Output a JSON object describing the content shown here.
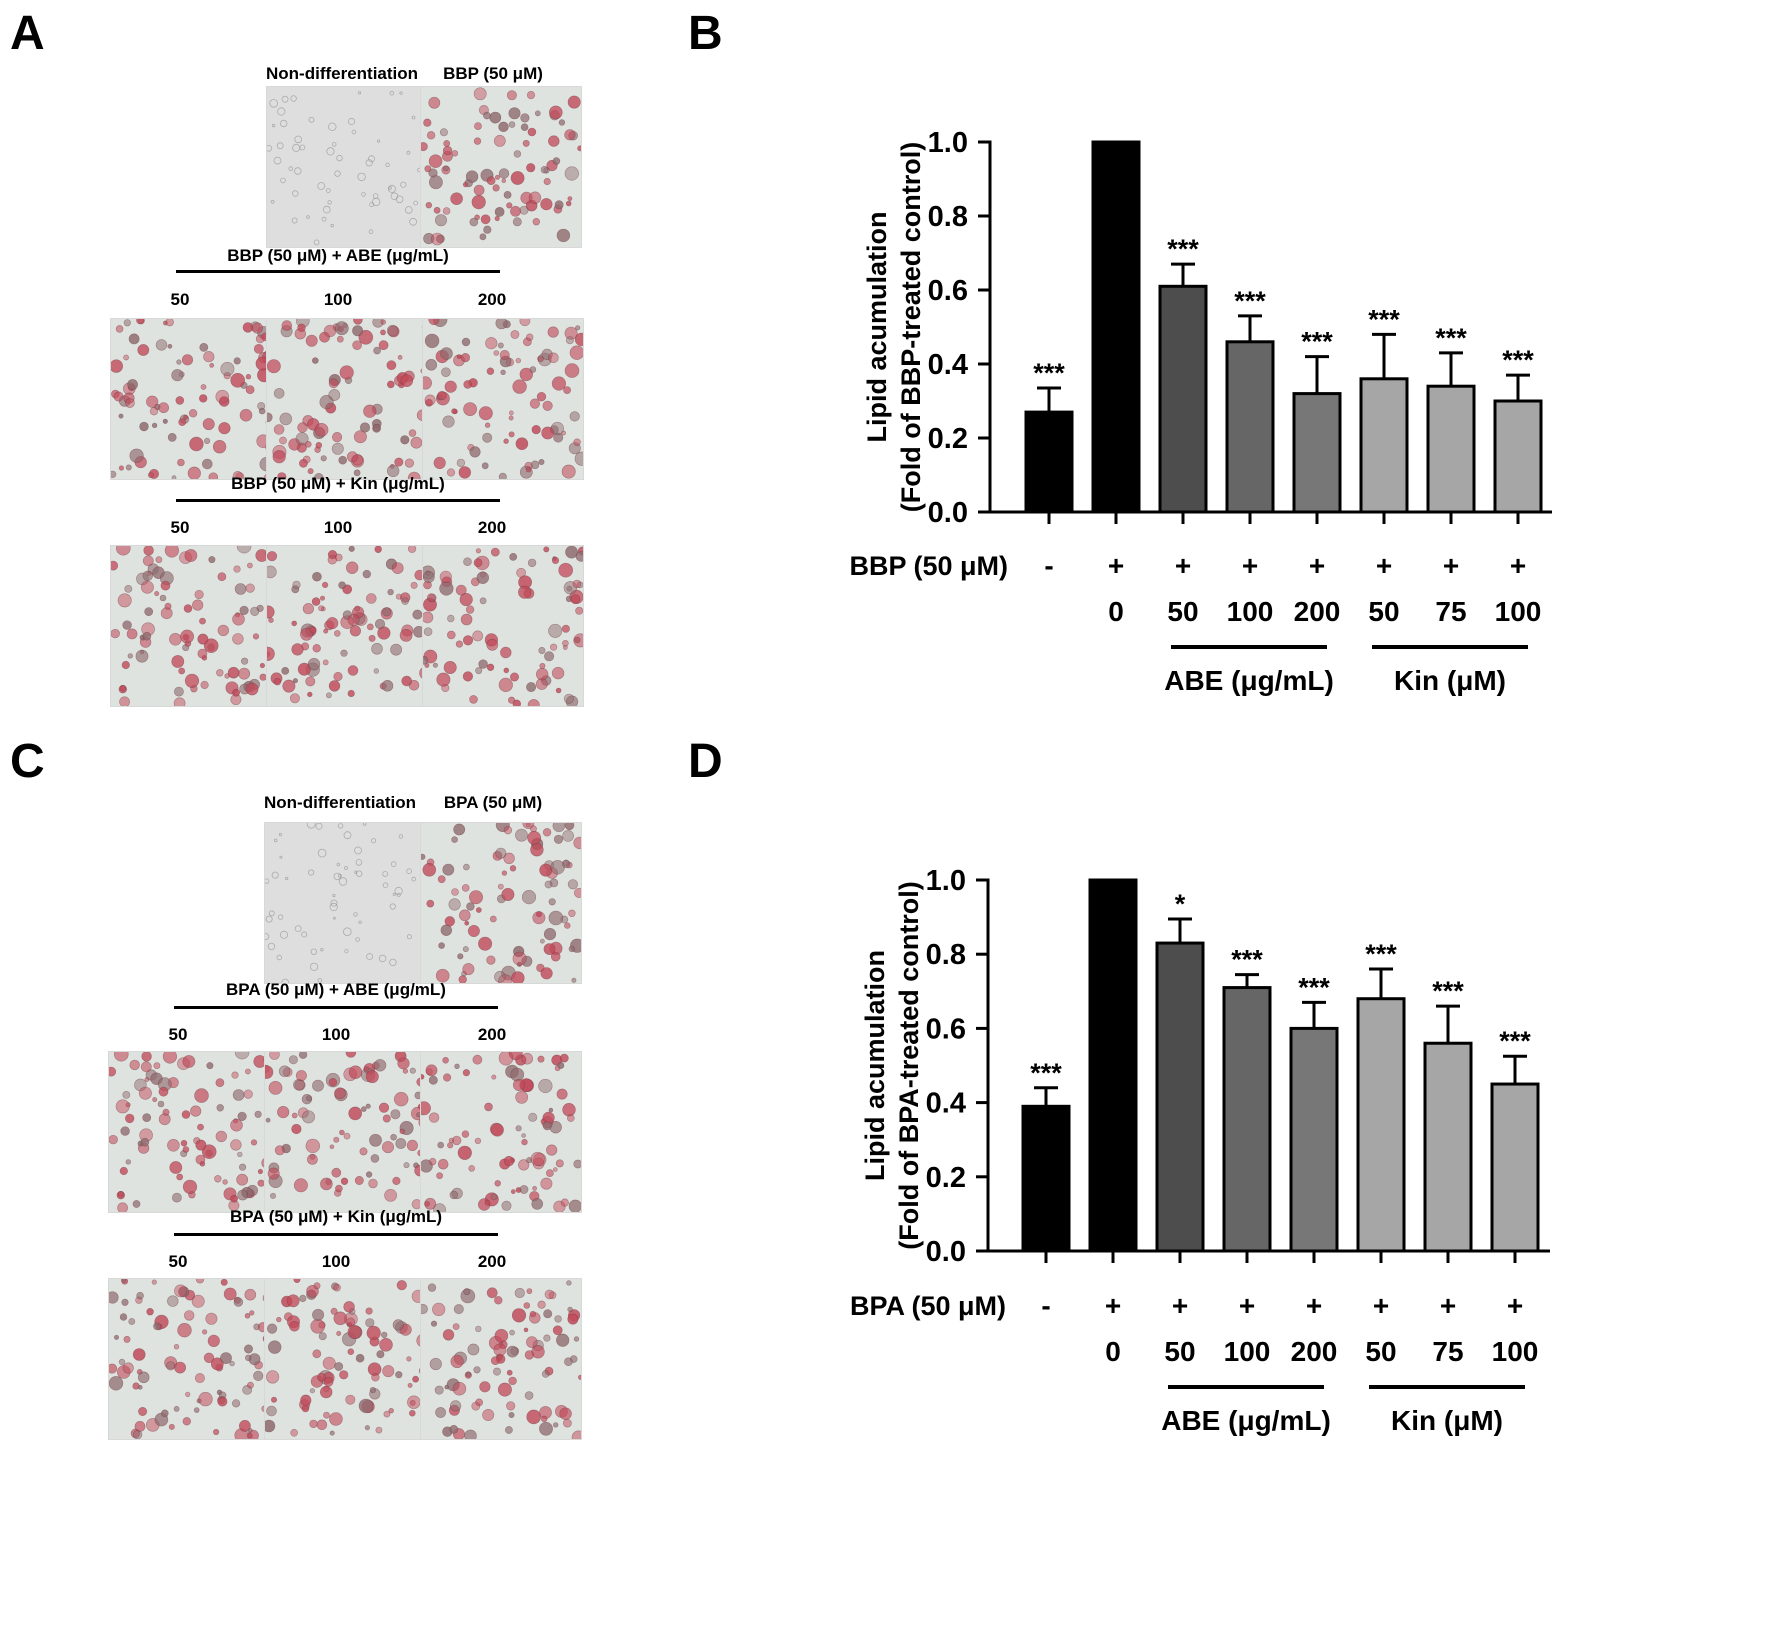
{
  "panels": {
    "A": {
      "letter": "A",
      "top_labels": [
        "Non-differentiation",
        "BBP (50 μM)"
      ],
      "group1_title": "BBP (50 μM) + ABE (μg/mL)",
      "group1_doses": [
        "50",
        "100",
        "200"
      ],
      "group2_title": "BBP (50 μM) + Kin (μg/mL)",
      "group2_doses": [
        "50",
        "100",
        "200"
      ],
      "image_tints": {
        "non_differentiated": "#d6d6d6",
        "stained": "#c14a5a"
      }
    },
    "B": {
      "letter": "B"
    },
    "C": {
      "letter": "C",
      "top_labels": [
        "Non-differentiation",
        "BPA (50 μM)"
      ],
      "group1_title": "BPA (50 μM) + ABE (μg/mL)",
      "group1_doses": [
        "50",
        "100",
        "200"
      ],
      "group2_title": "BPA (50 μM) + Kin (μg/mL)",
      "group2_doses": [
        "50",
        "100",
        "200"
      ]
    },
    "D": {
      "letter": "D"
    }
  },
  "chart_data": [
    {
      "panel": "B",
      "type": "bar",
      "ylabel": [
        "Lipid acumulation",
        "(Fold of  BBP-treated control)"
      ],
      "ylim": [
        0,
        1.0
      ],
      "yticks": [
        "0.0",
        "0.2",
        "0.4",
        "0.6",
        "0.8",
        "1.0"
      ],
      "values": [
        0.27,
        1.0,
        0.61,
        0.46,
        0.32,
        0.36,
        0.34,
        0.3
      ],
      "errors": [
        0.065,
        0,
        0.06,
        0.07,
        0.1,
        0.12,
        0.09,
        0.07
      ],
      "significance": [
        "***",
        "",
        "***",
        "***",
        "***",
        "***",
        "***",
        "***"
      ],
      "colors": [
        "#000000",
        "#000000",
        "#4d4d4d",
        "#666666",
        "#777777",
        "#a6a6a6",
        "#a6a6a6",
        "#a6a6a6"
      ],
      "row1_label": "BBP (50 μM)",
      "row1": [
        "-",
        "+",
        "+",
        "+",
        "+",
        "+",
        "+",
        "+"
      ],
      "row2": [
        "",
        "0",
        "50",
        "100",
        "200",
        "50",
        "75",
        "100"
      ],
      "groups": [
        "ABE (μg/mL)",
        "Kin (μM)"
      ]
    },
    {
      "panel": "D",
      "type": "bar",
      "ylabel": [
        "Lipid acumulation",
        "(Fold of  BPA-treated control)"
      ],
      "ylim": [
        0,
        1.0
      ],
      "yticks": [
        "0.0",
        "0.2",
        "0.4",
        "0.6",
        "0.8",
        "1.0"
      ],
      "values": [
        0.39,
        1.0,
        0.83,
        0.71,
        0.6,
        0.68,
        0.56,
        0.45
      ],
      "errors": [
        0.05,
        0,
        0.065,
        0.035,
        0.07,
        0.08,
        0.1,
        0.075
      ],
      "significance": [
        "***",
        "",
        "*",
        "***",
        "***",
        "***",
        "***",
        "***"
      ],
      "colors": [
        "#000000",
        "#000000",
        "#4d4d4d",
        "#666666",
        "#777777",
        "#a6a6a6",
        "#a6a6a6",
        "#a6a6a6"
      ],
      "row1_label": "BPA (50 μM)",
      "row1": [
        "-",
        "+",
        "+",
        "+",
        "+",
        "+",
        "+",
        "+"
      ],
      "row2": [
        "",
        "0",
        "50",
        "100",
        "200",
        "50",
        "75",
        "100"
      ],
      "groups": [
        "ABE (μg/mL)",
        "Kin (μM)"
      ]
    }
  ]
}
